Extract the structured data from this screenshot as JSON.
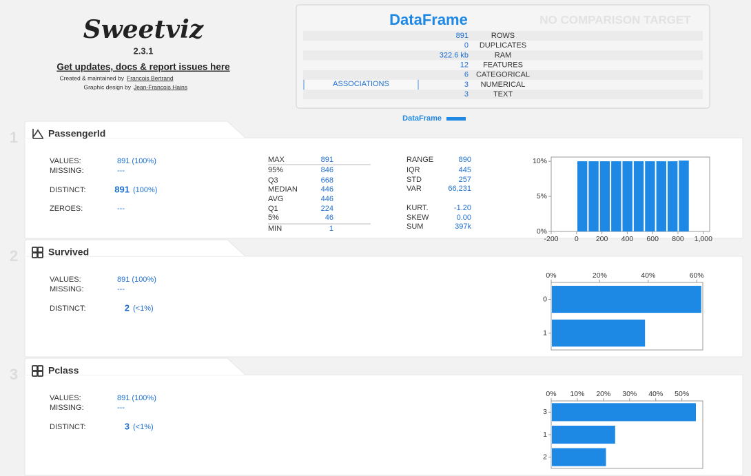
{
  "header": {
    "logo": "Sweetviz",
    "version": "2.3.1",
    "link": "Get updates, docs & report issues here",
    "credit1": "Created & maintained by",
    "author1": "Francois Bertrand",
    "credit2": "Graphic design by",
    "author2": "Jean-Francois Hains"
  },
  "summary": {
    "title": "DataFrame",
    "comparison": "NO COMPARISON TARGET",
    "button": "ASSOCIATIONS",
    "legend": "DataFrame",
    "rows": [
      {
        "value": "891",
        "label": "ROWS"
      },
      {
        "value": "0",
        "label": "DUPLICATES"
      },
      {
        "value": "322.6 kb",
        "label": "RAM"
      },
      {
        "value": "12",
        "label": "FEATURES"
      },
      {
        "value": "6",
        "label": "CATEGORICAL"
      },
      {
        "value": "3",
        "label": "NUMERICAL"
      },
      {
        "value": "3",
        "label": "TEXT"
      }
    ]
  },
  "features": [
    {
      "index": "1",
      "name": "PassengerId",
      "stats": [
        {
          "label": "VALUES:",
          "value": "891 (100%)"
        },
        {
          "label": "MISSING:",
          "value": "---"
        },
        {
          "label": "DISTINCT:",
          "value": "891",
          "pct": "(100%)"
        },
        {
          "label": "ZEROES:",
          "value": "---"
        }
      ],
      "quantiles": [
        {
          "label": "MAX",
          "value": "891"
        },
        {
          "label": "95%",
          "value": "846"
        },
        {
          "label": "Q3",
          "value": "668"
        },
        {
          "label": "MEDIAN",
          "value": "446"
        },
        {
          "label": "AVG",
          "value": "446"
        },
        {
          "label": "Q1",
          "value": "224"
        },
        {
          "label": "5%",
          "value": "46"
        },
        {
          "label": "MIN",
          "value": "1"
        }
      ],
      "moments": [
        {
          "label": "RANGE",
          "value": "890"
        },
        {
          "label": "IQR",
          "value": "445"
        },
        {
          "label": "STD",
          "value": "257"
        },
        {
          "label": "VAR",
          "value": "66,231"
        },
        {
          "label": "KURT.",
          "value": "-1.20"
        },
        {
          "label": "SKEW",
          "value": "0.00"
        },
        {
          "label": "SUM",
          "value": "397k"
        }
      ],
      "chart": {
        "type": "histogram",
        "color": "#1e88e5",
        "bins": [
          1,
          90,
          179,
          268,
          357,
          446,
          535,
          624,
          713,
          802,
          891
        ],
        "values": [
          10,
          10,
          10,
          10,
          10,
          10,
          10,
          10,
          10,
          10.1
        ],
        "xlim": [
          -200,
          1050
        ],
        "xticks": [
          -200,
          0,
          200,
          400,
          600,
          800,
          {
            "value": 1000,
            "label": "1,000"
          }
        ],
        "ylim": [
          0,
          10.6
        ],
        "yticks": [
          {
            "value": 0,
            "label": "0%"
          },
          {
            "value": 5,
            "label": "5%"
          },
          {
            "value": 10,
            "label": "10%"
          }
        ]
      }
    },
    {
      "index": "2",
      "name": "Survived",
      "stats": [
        {
          "label": "VALUES:",
          "value": "891 (100%)"
        },
        {
          "label": "MISSING:",
          "value": "---"
        },
        {
          "label": "DISTINCT:",
          "value": "2",
          "pct": "(<1%)"
        }
      ],
      "chart": {
        "type": "bar",
        "orientation": "horizontal",
        "color": "#1e88e5",
        "categories": [
          "0",
          "1"
        ],
        "values": [
          61.6,
          38.4
        ],
        "xlim": [
          0,
          62.5
        ],
        "xticks": [
          {
            "value": 0,
            "label": "0%"
          },
          {
            "value": 20,
            "label": "20%"
          },
          {
            "value": 40,
            "label": "40%"
          },
          {
            "value": 60,
            "label": "60%"
          }
        ]
      }
    },
    {
      "index": "3",
      "name": "Pclass",
      "stats": [
        {
          "label": "VALUES:",
          "value": "891 (100%)"
        },
        {
          "label": "MISSING:",
          "value": "---"
        },
        {
          "label": "DISTINCT:",
          "value": "3",
          "pct": "(<1%)"
        }
      ],
      "chart": {
        "type": "bar",
        "orientation": "horizontal",
        "color": "#1e88e5",
        "categories": [
          "3",
          "1",
          "2"
        ],
        "values": [
          55.1,
          24.2,
          20.7
        ],
        "xlim": [
          0,
          58
        ],
        "xticks": [
          {
            "value": 0,
            "label": "0%"
          },
          {
            "value": 10,
            "label": "10%"
          },
          {
            "value": 20,
            "label": "20%"
          },
          {
            "value": 30,
            "label": "30%"
          },
          {
            "value": 40,
            "label": "40%"
          },
          {
            "value": 50,
            "label": "50%"
          }
        ]
      }
    }
  ]
}
